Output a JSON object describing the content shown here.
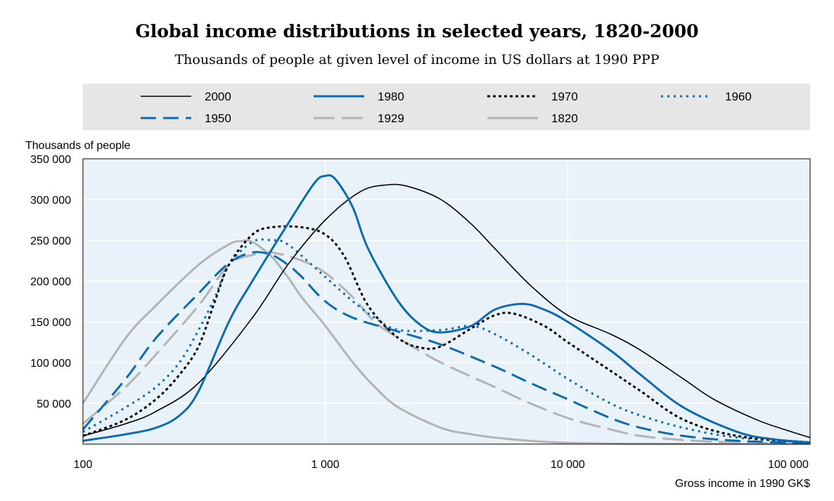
{
  "chart_data": {
    "type": "line",
    "title": "Global income distributions in selected years, 1820-2000",
    "subtitle": "Thousands of people at given level of income in US dollars at 1990 PPP",
    "ylabel": "Thousands of people",
    "xlabel": "Gross income in 1990 GK$",
    "x_scale": "log",
    "xlim": [
      100,
      100000
    ],
    "ylim": [
      0,
      350000
    ],
    "x_ticks": [
      100,
      1000,
      10000,
      100000
    ],
    "x_tick_labels": [
      "100",
      "1 000",
      "10 000",
      "100 000"
    ],
    "y_ticks": [
      50000,
      100000,
      150000,
      200000,
      250000,
      300000,
      350000
    ],
    "y_tick_labels": [
      "50 000",
      "100 000",
      "150 000",
      "200 000",
      "250 000",
      "300 000",
      "350 000"
    ],
    "grid": {
      "x": true,
      "y": true
    },
    "legend_position": "top",
    "series": [
      {
        "name": "2000",
        "color": "#000000",
        "dash": "solid",
        "width": 1.6,
        "points": [
          [
            100,
            10000
          ],
          [
            150,
            25000
          ],
          [
            200,
            40000
          ],
          [
            300,
            75000
          ],
          [
            500,
            155000
          ],
          [
            700,
            220000
          ],
          [
            1000,
            275000
          ],
          [
            1400,
            310000
          ],
          [
            1800,
            318000
          ],
          [
            2200,
            316000
          ],
          [
            3000,
            300000
          ],
          [
            4000,
            270000
          ],
          [
            5000,
            240000
          ],
          [
            7000,
            195000
          ],
          [
            10000,
            158000
          ],
          [
            15000,
            135000
          ],
          [
            20000,
            115000
          ],
          [
            30000,
            80000
          ],
          [
            40000,
            55000
          ],
          [
            60000,
            30000
          ],
          [
            80000,
            17000
          ],
          [
            100000,
            8000
          ]
        ]
      },
      {
        "name": "1980",
        "color": "#0c6ab0",
        "dash": "solid",
        "width": 3,
        "points": [
          [
            100,
            4000
          ],
          [
            150,
            12000
          ],
          [
            200,
            20000
          ],
          [
            250,
            35000
          ],
          [
            300,
            65000
          ],
          [
            400,
            150000
          ],
          [
            500,
            200000
          ],
          [
            700,
            270000
          ],
          [
            900,
            320000
          ],
          [
            1000,
            329000
          ],
          [
            1100,
            325000
          ],
          [
            1300,
            290000
          ],
          [
            1500,
            240000
          ],
          [
            2000,
            175000
          ],
          [
            2500,
            145000
          ],
          [
            3000,
            137000
          ],
          [
            4000,
            145000
          ],
          [
            5000,
            165000
          ],
          [
            6500,
            172000
          ],
          [
            8000,
            165000
          ],
          [
            10000,
            150000
          ],
          [
            15000,
            115000
          ],
          [
            20000,
            85000
          ],
          [
            30000,
            45000
          ],
          [
            50000,
            15000
          ],
          [
            70000,
            6000
          ],
          [
            100000,
            2000
          ]
        ]
      },
      {
        "name": "1970",
        "color": "#000000",
        "dash": "4,4",
        "width": 3,
        "points": [
          [
            100,
            10000
          ],
          [
            150,
            30000
          ],
          [
            200,
            55000
          ],
          [
            250,
            85000
          ],
          [
            300,
            120000
          ],
          [
            350,
            175000
          ],
          [
            400,
            220000
          ],
          [
            500,
            257000
          ],
          [
            600,
            266000
          ],
          [
            800,
            266000
          ],
          [
            1000,
            257000
          ],
          [
            1200,
            230000
          ],
          [
            1500,
            170000
          ],
          [
            2000,
            130000
          ],
          [
            2500,
            118000
          ],
          [
            3000,
            120000
          ],
          [
            4000,
            142000
          ],
          [
            5000,
            158000
          ],
          [
            6000,
            160000
          ],
          [
            8000,
            145000
          ],
          [
            10000,
            125000
          ],
          [
            15000,
            90000
          ],
          [
            20000,
            65000
          ],
          [
            30000,
            30000
          ],
          [
            50000,
            10000
          ],
          [
            100000,
            2000
          ]
        ]
      },
      {
        "name": "1960",
        "color": "#0c6ab0",
        "dash": "3,6",
        "width": 3,
        "points": [
          [
            100,
            15000
          ],
          [
            150,
            45000
          ],
          [
            200,
            70000
          ],
          [
            250,
            100000
          ],
          [
            300,
            140000
          ],
          [
            350,
            180000
          ],
          [
            400,
            220000
          ],
          [
            500,
            248000
          ],
          [
            600,
            250000
          ],
          [
            700,
            245000
          ],
          [
            1000,
            205000
          ],
          [
            1300,
            175000
          ],
          [
            1600,
            155000
          ],
          [
            2000,
            140000
          ],
          [
            3000,
            140000
          ],
          [
            4000,
            145000
          ],
          [
            5000,
            135000
          ],
          [
            7000,
            110000
          ],
          [
            10000,
            80000
          ],
          [
            15000,
            50000
          ],
          [
            20000,
            35000
          ],
          [
            30000,
            20000
          ],
          [
            50000,
            8000
          ],
          [
            100000,
            2000
          ]
        ]
      },
      {
        "name": "1950",
        "color": "#0c6ab0",
        "dash": "22,10",
        "width": 3,
        "points": [
          [
            100,
            18000
          ],
          [
            150,
            80000
          ],
          [
            200,
            130000
          ],
          [
            300,
            185000
          ],
          [
            400,
            222000
          ],
          [
            500,
            235000
          ],
          [
            600,
            232000
          ],
          [
            700,
            220000
          ],
          [
            800,
            205000
          ],
          [
            1000,
            175000
          ],
          [
            1300,
            155000
          ],
          [
            2000,
            138000
          ],
          [
            3000,
            122000
          ],
          [
            5000,
            95000
          ],
          [
            7000,
            75000
          ],
          [
            10000,
            55000
          ],
          [
            15000,
            32000
          ],
          [
            20000,
            20000
          ],
          [
            30000,
            10000
          ],
          [
            50000,
            4000
          ],
          [
            100000,
            1000
          ]
        ]
      },
      {
        "name": "1929",
        "color": "#b3b3b3",
        "dash": "30,10",
        "width": 3,
        "points": [
          [
            100,
            25000
          ],
          [
            150,
            70000
          ],
          [
            200,
            110000
          ],
          [
            300,
            170000
          ],
          [
            400,
            220000
          ],
          [
            500,
            232000
          ],
          [
            600,
            235000
          ],
          [
            800,
            225000
          ],
          [
            1000,
            210000
          ],
          [
            1300,
            180000
          ],
          [
            1600,
            150000
          ],
          [
            2000,
            130000
          ],
          [
            3000,
            100000
          ],
          [
            5000,
            70000
          ],
          [
            7000,
            50000
          ],
          [
            10000,
            32000
          ],
          [
            15000,
            18000
          ],
          [
            20000,
            10000
          ],
          [
            30000,
            5000
          ],
          [
            50000,
            2000
          ],
          [
            100000,
            500
          ]
        ]
      },
      {
        "name": "1820",
        "color": "#b3b3b3",
        "dash": "solid",
        "width": 3,
        "points": [
          [
            100,
            50000
          ],
          [
            150,
            130000
          ],
          [
            200,
            170000
          ],
          [
            300,
            220000
          ],
          [
            400,
            245000
          ],
          [
            450,
            249000
          ],
          [
            500,
            248000
          ],
          [
            600,
            230000
          ],
          [
            700,
            205000
          ],
          [
            800,
            180000
          ],
          [
            1000,
            145000
          ],
          [
            1300,
            100000
          ],
          [
            1600,
            70000
          ],
          [
            2000,
            45000
          ],
          [
            3000,
            20000
          ],
          [
            4000,
            12000
          ],
          [
            5000,
            8000
          ],
          [
            7000,
            4000
          ],
          [
            10000,
            1500
          ],
          [
            20000,
            300
          ],
          [
            100000,
            0
          ]
        ]
      }
    ]
  }
}
